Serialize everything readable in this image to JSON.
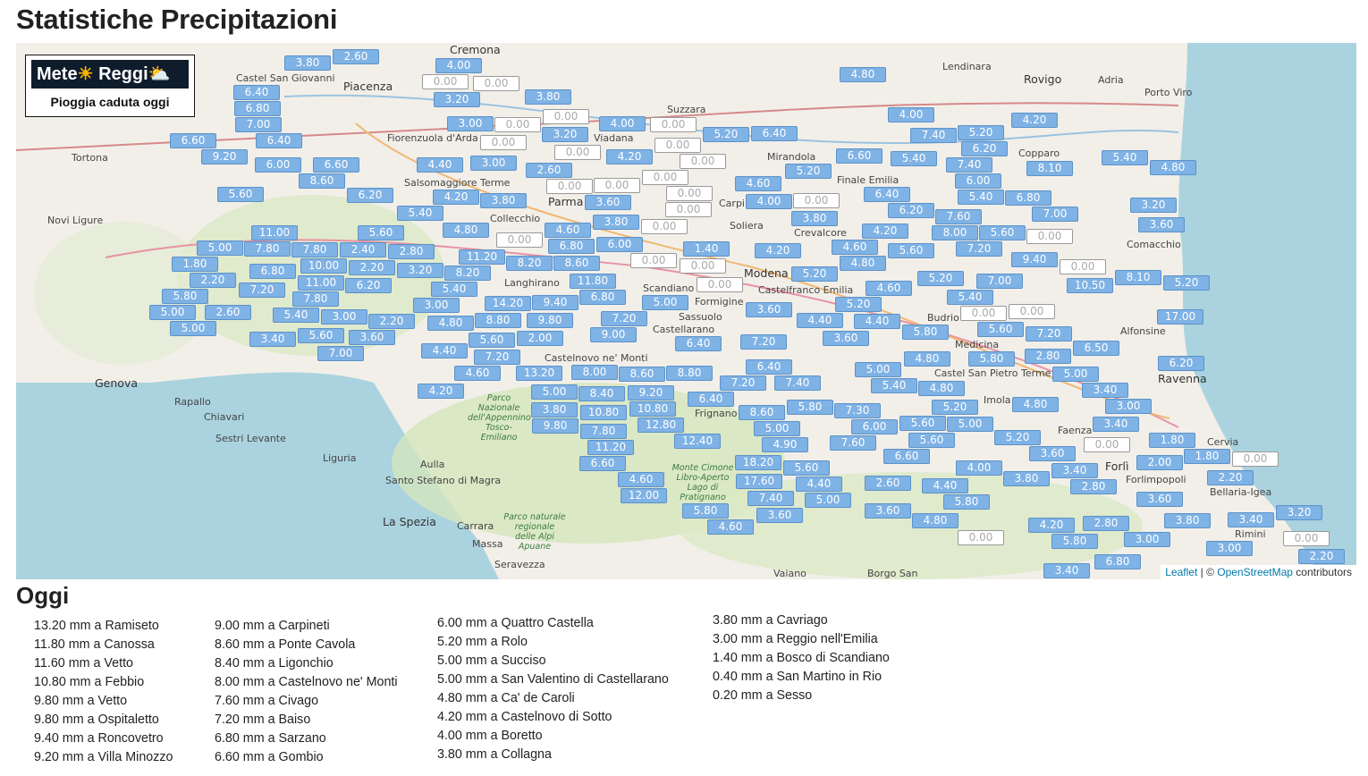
{
  "title": "Statistiche Precipitazioni",
  "logo": {
    "brand": "Meteo Reggio",
    "subtitle": "Pioggia caduta oggi"
  },
  "attribution": {
    "leaflet": "Leaflet",
    "sep": " | © ",
    "osm": "OpenStreetMap",
    "rest": " contributors"
  },
  "colors": {
    "marker": "#7fb2e5",
    "marker_zero": "#ffffff",
    "land": "#f2efe9",
    "sea": "#aad3df",
    "forest": "#cfe3b8"
  },
  "map": {
    "places": [
      "Piacenza",
      "Parma",
      "Modena",
      "Genova",
      "La Spezia",
      "Rovigo",
      "Ravenna",
      "Forlì",
      "Cremona",
      "Tortona",
      "Novi Ligure",
      "Castel San Giovanni",
      "Fiorenzuola d'Arda",
      "Salsomaggiore Terme",
      "Collecchio",
      "Langhirano",
      "Scandiano",
      "Sassuolo",
      "Castellarano",
      "Carpi",
      "Soliera",
      "Castelfranco Emilia",
      "Finale Emilia",
      "Mirandola",
      "Copparo",
      "Adria",
      "Porto Viro",
      "Comacchio",
      "Alfonsine",
      "Faenza",
      "Forlimpopoli",
      "Cervia",
      "Bellaria-Igea",
      "Rimini",
      "Imola",
      "Budrio",
      "Rapallo",
      "Chiavari",
      "Sestri Levante",
      "Aulla",
      "Santo Stefano di Magra",
      "Carrara",
      "Massa",
      "Seravezza",
      "Vaiano",
      "Borgo San",
      "Lendinara",
      "Formigine",
      "Frignano",
      "Castelnovo ne' Monti",
      "Liguria",
      "Crevalcore",
      "Medicina",
      "Castel San Pietro Terme",
      "Viadana",
      "Suzzara"
    ],
    "parks": [
      "Parco Nazionale dell'Appennino Tosco-Emiliano",
      "Parco naturale regionale delle Alpi Apuane",
      "Monte Cimone Libro-Aperto Lago di Pratignano"
    ],
    "markers": [
      "3.80",
      "2.60",
      "4.00",
      "6.40",
      "6.80",
      "7.00",
      "3.20",
      "3.80",
      "3.00",
      "6.60",
      "6.40",
      "9.20",
      "6.00",
      "6.60",
      "8.60",
      "6.20",
      "5.60",
      "4.40",
      "3.00",
      "2.60",
      "4.20",
      "5.40",
      "3.80",
      "4.80",
      "3.20",
      "4.00",
      "4.20",
      "5.20",
      "6.40",
      "5.20",
      "6.60",
      "5.40",
      "4.80",
      "4.00",
      "7.40",
      "5.20",
      "6.20",
      "7.40",
      "6.00",
      "5.40",
      "6.80",
      "4.20",
      "8.10",
      "5.40",
      "4.80",
      "6.40",
      "6.20",
      "7.60",
      "8.00",
      "7.20",
      "5.60",
      "3.20",
      "3.60",
      "7.00",
      "9.40",
      "4.60",
      "4.00",
      "3.80",
      "4.60",
      "4.20",
      "4.80",
      "5.60",
      "4.20",
      "7.00",
      "10.50",
      "8.10",
      "5.20",
      "17.00",
      "5.20",
      "5.40",
      "5.80",
      "5.20",
      "5.20",
      "4.60",
      "3.60",
      "4.40",
      "3.60",
      "4.40",
      "7.20",
      "6.40",
      "7.40",
      "7.20",
      "6.40",
      "5.00",
      "7.20",
      "6.80",
      "11.80",
      "9.40",
      "9.80",
      "9.00",
      "14.20",
      "8.80",
      "4.80",
      "3.00",
      "5.40",
      "8.20",
      "11.20",
      "8.20",
      "8.60",
      "6.80",
      "6.00",
      "4.60",
      "3.80",
      "3.60",
      "1.40",
      "5.00",
      "7.80",
      "11.00",
      "7.80",
      "10.00",
      "2.40",
      "5.60",
      "2.80",
      "1.80",
      "2.20",
      "6.80",
      "11.00",
      "6.20",
      "2.20",
      "3.20",
      "5.80",
      "5.00",
      "7.20",
      "7.80",
      "5.40",
      "3.00",
      "5.00",
      "2.60",
      "2.20",
      "3.40",
      "5.60",
      "3.60",
      "7.00",
      "4.40",
      "5.60",
      "7.20",
      "2.00",
      "13.20",
      "8.00",
      "8.60",
      "4.60",
      "5.00",
      "4.20",
      "3.80",
      "8.40",
      "9.80",
      "10.80",
      "9.20",
      "10.80",
      "8.80",
      "6.40",
      "8.60",
      "5.00",
      "5.80",
      "4.90",
      "12.80",
      "12.40",
      "7.80",
      "11.20",
      "6.60",
      "4.60",
      "12.00",
      "18.20",
      "17.60",
      "5.80",
      "5.60",
      "7.40",
      "4.40",
      "5.00",
      "3.60",
      "4.60",
      "7.30",
      "6.00",
      "5.60",
      "5.60",
      "7.60",
      "6.60",
      "5.20",
      "5.00",
      "5.20",
      "4.80",
      "5.00",
      "5.40",
      "4.80",
      "4.80",
      "5.80",
      "5.00",
      "3.40",
      "3.00",
      "6.20",
      "3.40",
      "7.20",
      "2.80",
      "5.60",
      "6.50",
      "3.60",
      "3.40",
      "2.80",
      "3.80",
      "5.80",
      "4.80",
      "3.60",
      "2.60",
      "4.40",
      "4.00",
      "3.60",
      "3.80",
      "3.40",
      "2.80",
      "5.80",
      "3.00",
      "3.00",
      "6.80",
      "2.20",
      "1.80",
      "1.80",
      "2.00",
      "3.40",
      "4.20",
      "3.20",
      "2.20"
    ],
    "zero_markers": [
      "0.00",
      "0.00",
      "0.00",
      "0.00",
      "0.00",
      "0.00",
      "0.00",
      "0.00",
      "0.00",
      "0.00",
      "0.00",
      "0.00",
      "0.00",
      "0.00",
      "0.00",
      "0.00",
      "0.00",
      "0.00",
      "0.00",
      "0.00",
      "0.00",
      "0.00",
      "0.00",
      "0.00",
      "0.00",
      "0.00",
      "0.00",
      "0.00"
    ]
  },
  "today": {
    "heading": "Oggi",
    "columns": [
      [
        "13.20 mm a Ramiseto",
        "11.80 mm a Canossa",
        "11.60 mm a Vetto",
        "10.80 mm a Febbio",
        "9.80 mm a Vetto",
        "9.80 mm a Ospitaletto",
        "9.40 mm a Roncovetro",
        "9.20 mm a Villa Minozzo"
      ],
      [
        "9.00 mm a Carpineti",
        "8.60 mm a Ponte Cavola",
        "8.40 mm a Ligonchio",
        "8.00 mm a Castelnovo ne' Monti",
        "7.60 mm a Civago",
        "7.20 mm a Baiso",
        "6.80 mm a Sarzano",
        "6.60 mm a Gombio"
      ],
      [
        "6.00 mm a Quattro Castella",
        "5.20 mm a Rolo",
        "5.00 mm a Succiso",
        "5.00 mm a San Valentino di Castellarano",
        "4.80 mm a Ca' de Caroli",
        "4.20 mm a Castelnovo di Sotto",
        "4.00 mm a Boretto",
        "3.80 mm a Collagna"
      ],
      [
        "3.80 mm a Cavriago",
        "3.00 mm a Reggio nell'Emilia",
        "1.40 mm a Bosco di Scandiano",
        "0.40 mm a San Martino in Rio",
        "0.20 mm a Sesso"
      ]
    ]
  }
}
